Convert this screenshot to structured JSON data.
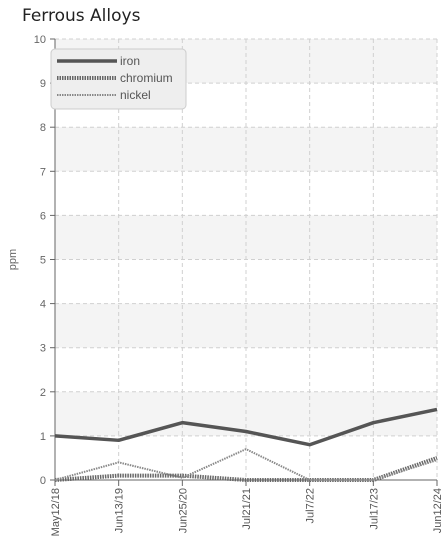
{
  "chart_data": {
    "type": "line",
    "title": "Ferrous Alloys",
    "xlabel": "",
    "ylabel": "ppm",
    "categories": [
      "May12/18",
      "Jun13/19",
      "Jun25/20",
      "Jul21/21",
      "Jul7/22",
      "Jul17/23",
      "Jun12/24"
    ],
    "ylim": [
      0,
      10
    ],
    "yticks": [
      0,
      1,
      2,
      3,
      4,
      5,
      6,
      7,
      8,
      9,
      10
    ],
    "grid": true,
    "legend_position": "top-left",
    "series": [
      {
        "name": "iron",
        "values": [
          1.0,
          0.9,
          1.3,
          1.1,
          0.8,
          1.3,
          1.6
        ],
        "color": "#555555"
      },
      {
        "name": "chromium",
        "values": [
          0.0,
          0.1,
          0.1,
          0.0,
          0.0,
          0.0,
          0.5
        ],
        "color": "#666666"
      },
      {
        "name": "nickel",
        "values": [
          0.0,
          0.4,
          0.05,
          0.7,
          0.0,
          0.0,
          0.45
        ],
        "color": "#888888"
      }
    ]
  }
}
